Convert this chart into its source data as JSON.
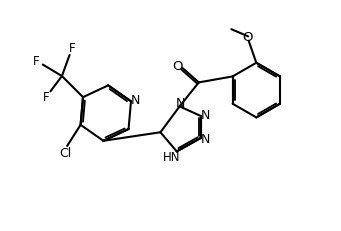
{
  "background_color": "#ffffff",
  "line_color": "#000000",
  "lw": 1.5,
  "figsize": [
    3.41,
    2.32
  ],
  "dpi": 100,
  "xlim": [
    -0.1,
    3.41
  ],
  "ylim": [
    -0.05,
    2.37
  ]
}
